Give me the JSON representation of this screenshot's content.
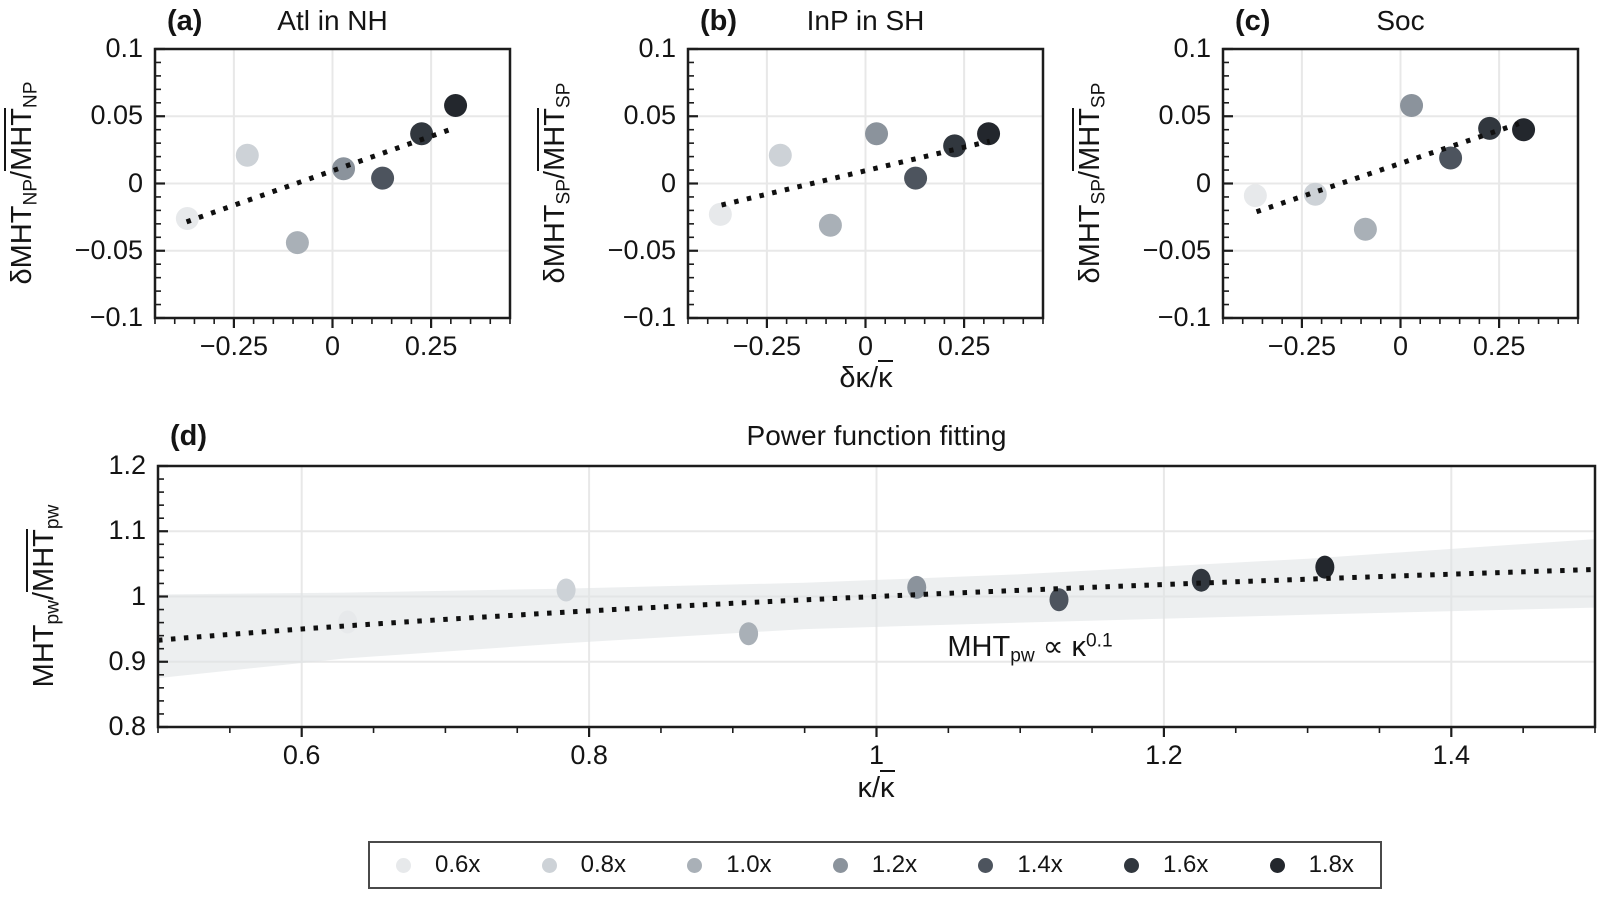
{
  "chart_data": [
    {
      "id": "a",
      "type": "scatter",
      "panel_label": "(a)",
      "title": "Atl in NH",
      "ylabel_parts": {
        "pre": "δMHT",
        "presub": "NP",
        "slash": "/",
        "over": "MHT",
        "oversub": "NP"
      },
      "xlim": [
        -0.45,
        0.45
      ],
      "ylim": [
        -0.1,
        0.1
      ],
      "xticks": {
        "values": [
          -0.25,
          0,
          0.25
        ],
        "labels": [
          "−0.25",
          "0",
          "0.25"
        ],
        "minor_step": 0.05
      },
      "yticks": {
        "values": [
          0.1,
          0.05,
          0,
          -0.05,
          -0.1
        ],
        "labels": [
          "0.1",
          "0.05",
          "0",
          "−0.05",
          "−0.1"
        ],
        "minor_step": 0.01
      },
      "grid": true,
      "points": {
        "series": [
          "0.6x",
          "0.8x",
          "1.0x",
          "1.2x",
          "1.4x",
          "1.6x",
          "1.8x"
        ],
        "x": [
          -0.368,
          -0.216,
          -0.089,
          0.028,
          0.127,
          0.226,
          0.312
        ],
        "y": [
          -0.026,
          0.021,
          -0.044,
          0.011,
          0.004,
          0.037,
          0.058
        ]
      },
      "trend_line": {
        "style": "dotted",
        "x": [
          -0.37,
          0.312
        ],
        "y": [
          -0.0285,
          0.0415
        ]
      }
    },
    {
      "id": "b",
      "type": "scatter",
      "panel_label": "(b)",
      "title": "InP in SH",
      "ylabel_parts": {
        "pre": "δMHT",
        "presub": "SP",
        "slash": "/",
        "over": "MHT",
        "oversub": "SP"
      },
      "xlabel_parts": {
        "pre": "δκ/",
        "over": "κ"
      },
      "xlim": [
        -0.45,
        0.45
      ],
      "ylim": [
        -0.1,
        0.1
      ],
      "xticks": {
        "values": [
          -0.25,
          0,
          0.25
        ],
        "labels": [
          "−0.25",
          "0",
          "0.25"
        ],
        "minor_step": 0.05
      },
      "yticks": {
        "values": [
          0.1,
          0.05,
          0,
          -0.05,
          -0.1
        ],
        "labels": [
          "0.1",
          "0.05",
          "0",
          "−0.05",
          "−0.1"
        ],
        "minor_step": 0.01
      },
      "grid": true,
      "points": {
        "series": [
          "0.6x",
          "0.8x",
          "1.0x",
          "1.2x",
          "1.4x",
          "1.6x",
          "1.8x"
        ],
        "x": [
          -0.368,
          -0.216,
          -0.089,
          0.028,
          0.127,
          0.226,
          0.312
        ],
        "y": [
          -0.023,
          0.021,
          -0.031,
          0.037,
          0.004,
          0.028,
          0.037
        ]
      },
      "trend_line": {
        "style": "dotted",
        "x": [
          -0.365,
          0.315
        ],
        "y": [
          -0.016,
          0.0315
        ]
      }
    },
    {
      "id": "c",
      "type": "scatter",
      "panel_label": "(c)",
      "title": "Soc",
      "ylabel_parts": {
        "pre": "δMHT",
        "presub": "SP",
        "slash": "/",
        "over": "MHT",
        "oversub": "SP"
      },
      "xlim": [
        -0.45,
        0.45
      ],
      "ylim": [
        -0.1,
        0.1
      ],
      "xticks": {
        "values": [
          -0.25,
          0,
          0.25
        ],
        "labels": [
          "−0.25",
          "0",
          "0.25"
        ],
        "minor_step": 0.05
      },
      "yticks": {
        "values": [
          0.1,
          0.05,
          0,
          -0.05,
          -0.1
        ],
        "labels": [
          "0.1",
          "0.05",
          "0",
          "−0.05",
          "−0.1"
        ],
        "minor_step": 0.01
      },
      "grid": true,
      "points": {
        "series": [
          "0.6x",
          "0.8x",
          "1.0x",
          "1.2x",
          "1.4x",
          "1.6x",
          "1.8x"
        ],
        "x": [
          -0.368,
          -0.216,
          -0.089,
          0.028,
          0.127,
          0.226,
          0.312
        ],
        "y": [
          -0.009,
          -0.008,
          -0.034,
          0.058,
          0.019,
          0.041,
          0.04
        ]
      },
      "trend_line": {
        "style": "dotted",
        "x": [
          -0.365,
          0.3
        ],
        "y": [
          -0.021,
          0.0445
        ]
      }
    },
    {
      "id": "d",
      "type": "scatter",
      "panel_label": "(d)",
      "title": "Power function fitting",
      "ylabel_parts": {
        "pre": "MHT",
        "presub": "pw",
        "slash": "/",
        "over": "MHT",
        "oversub": "pw"
      },
      "xlabel_parts": {
        "pre": "κ/",
        "over": "κ"
      },
      "xlim": [
        0.5,
        1.5
      ],
      "ylim": [
        0.8,
        1.2
      ],
      "xticks": {
        "values": [
          0.6,
          0.8,
          1,
          1.2,
          1.4
        ],
        "labels": [
          "0.6",
          "0.8",
          "1",
          "1.2",
          "1.4"
        ],
        "minor_step": 0.05
      },
      "yticks": {
        "values": [
          1.2,
          1.1,
          1,
          0.9,
          0.8
        ],
        "labels": [
          "1.2",
          "1.1",
          "1",
          "0.9",
          "0.8"
        ],
        "minor_step": 0.02
      },
      "grid": true,
      "points": {
        "series": [
          "0.6x",
          "0.8x",
          "1.0x",
          "1.2x",
          "1.4x",
          "1.6x",
          "1.8x"
        ],
        "x": [
          0.632,
          0.784,
          0.911,
          1.028,
          1.127,
          1.226,
          1.312
        ],
        "y": [
          0.961,
          1.01,
          0.943,
          1.014,
          0.995,
          1.025,
          1.045
        ]
      },
      "fit_line": {
        "style": "dotted",
        "type": "power",
        "exponent": 0.1,
        "x_range": [
          0.5,
          1.5
        ]
      },
      "confidence_band": {
        "x": [
          0.5,
          0.63,
          0.78,
          0.95,
          1.1,
          1.3,
          1.5
        ],
        "upper": [
          1.003,
          1.006,
          1.012,
          1.021,
          1.034,
          1.058,
          1.088
        ],
        "lower": [
          0.875,
          0.905,
          0.928,
          0.95,
          0.96,
          0.972,
          0.983
        ]
      },
      "annotation_parts": {
        "pre": "MHT",
        "sub": "pw",
        "mid": " ∝ κ",
        "sup": "0.1"
      }
    }
  ],
  "legend": {
    "items": [
      {
        "label": "0.6x",
        "color": "#e7e9eb"
      },
      {
        "label": "0.8x",
        "color": "#cdd2d7"
      },
      {
        "label": "1.0x",
        "color": "#a9b0b7"
      },
      {
        "label": "1.2x",
        "color": "#8b939c"
      },
      {
        "label": "1.4x",
        "color": "#4d545e"
      },
      {
        "label": "1.6x",
        "color": "#31373e"
      },
      {
        "label": "1.8x",
        "color": "#23272d"
      }
    ]
  },
  "style_colors": {
    "grid": "#e8e8e8",
    "frame": "#1c1c1c",
    "trend": "#101010",
    "band_fill": "#dfe2e4",
    "text": "#141414"
  }
}
